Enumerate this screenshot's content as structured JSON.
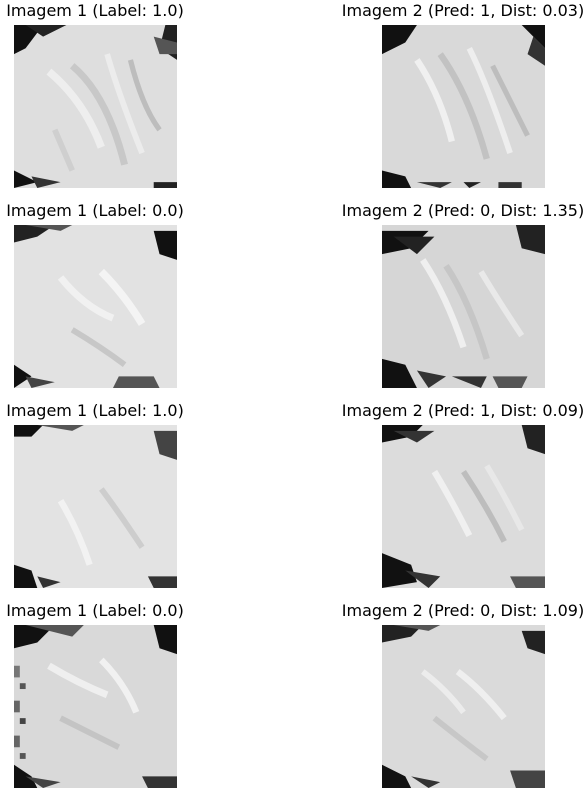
{
  "pairs": [
    {
      "left_title": "Imagem 1 (Label: 1.0)",
      "right_title": "Imagem 2 (Pred: 1, Dist: 0.03)"
    },
    {
      "left_title": "Imagem 1 (Label: 0.0)",
      "right_title": "Imagem 2 (Pred: 0, Dist: 1.35)"
    },
    {
      "left_title": "Imagem 1 (Label: 1.0)",
      "right_title": "Imagem 2 (Pred: 1, Dist: 0.09)"
    },
    {
      "left_title": "Imagem 1 (Label: 0.0)",
      "right_title": "Imagem 2 (Pred: 0, Dist: 1.09)"
    }
  ],
  "colors": {
    "background": "#ffffff",
    "image_base": "#d8d8d8",
    "image_dark": "#111111",
    "image_mid": "#7b7b7b",
    "image_light": "#efefef"
  }
}
